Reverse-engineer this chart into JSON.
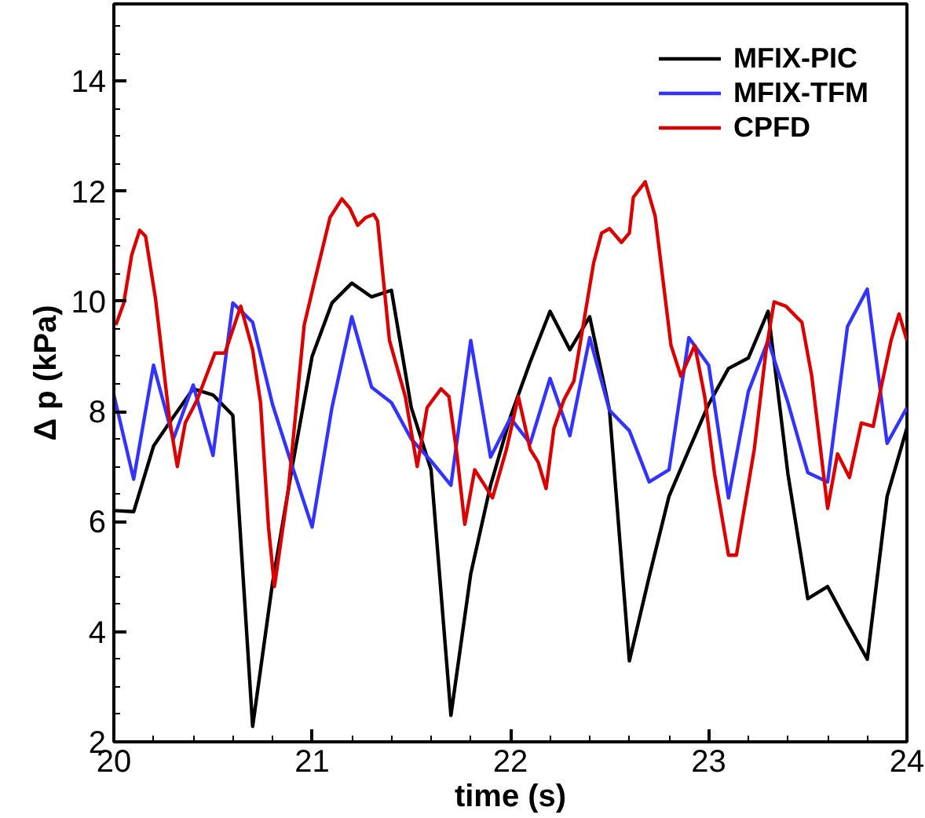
{
  "chart_data": {
    "type": "line",
    "xlabel": "time (s)",
    "ylabel": "Δ p (kPa)",
    "xlim": [
      20,
      24
    ],
    "ylim": [
      2,
      15.4
    ],
    "xticks": [
      20,
      21,
      22,
      23,
      24
    ],
    "yticks": [
      2,
      4,
      6,
      8,
      10,
      12,
      14
    ],
    "grid": false,
    "legend": "top right",
    "marker": "none",
    "line_style": "solid",
    "x": [
      20.0,
      20.1,
      20.2,
      20.3,
      20.4,
      20.5,
      20.6,
      20.7,
      20.8,
      20.9,
      21.0,
      21.1,
      21.2,
      21.3,
      21.4,
      21.5,
      21.6,
      21.7,
      21.8,
      21.9,
      22.0,
      22.1,
      22.2,
      22.3,
      22.4,
      22.5,
      22.6,
      22.7,
      22.8,
      22.9,
      23.0,
      23.1,
      23.2,
      23.3,
      23.4,
      23.5,
      23.6,
      23.7,
      23.8,
      23.9,
      24.0
    ],
    "series": [
      {
        "name": "MFIX-PIC",
        "color": "#000000",
        "values": [
          6.2,
          6.18,
          7.37,
          7.9,
          8.41,
          8.3,
          7.93,
          2.28,
          4.88,
          7.0,
          9.0,
          9.97,
          10.33,
          10.08,
          10.2,
          8.07,
          6.94,
          2.48,
          5.05,
          6.66,
          7.9,
          8.9,
          9.82,
          9.12,
          9.72,
          8.02,
          3.47,
          5.0,
          6.46,
          7.3,
          8.13,
          8.78,
          8.97,
          9.82,
          6.86,
          4.6,
          4.82,
          4.15,
          3.5,
          6.46,
          7.7
        ]
      },
      {
        "name": "MFIX-TFM",
        "color": "#3333ff",
        "values": [
          8.3,
          6.77,
          8.84,
          7.5,
          8.48,
          7.2,
          9.97,
          9.62,
          8.13,
          7.0,
          5.9,
          8.07,
          9.72,
          8.44,
          8.16,
          7.5,
          7.1,
          6.66,
          9.29,
          7.17,
          7.88,
          7.42,
          8.6,
          7.56,
          9.34,
          8.02,
          7.65,
          6.72,
          6.94,
          9.34,
          8.84,
          6.43,
          8.36,
          9.29,
          8.16,
          6.89,
          6.72,
          9.54,
          10.22,
          7.42,
          8.07
        ]
      },
      {
        "name": "CPFD",
        "color": "#dd0000",
        "x": [
          20.01,
          20.05,
          20.09,
          20.13,
          20.16,
          20.21,
          20.28,
          20.32,
          20.36,
          20.42,
          20.51,
          20.56,
          20.64,
          20.7,
          20.74,
          20.78,
          20.81,
          20.88,
          20.96,
          21.01,
          21.09,
          21.15,
          21.19,
          21.23,
          21.27,
          21.31,
          21.33,
          21.39,
          21.47,
          21.53,
          21.58,
          21.65,
          21.69,
          21.73,
          21.77,
          21.82,
          21.87,
          21.91,
          21.98,
          22.04,
          22.1,
          22.14,
          22.18,
          22.22,
          22.27,
          22.32,
          22.42,
          22.46,
          22.5,
          22.56,
          22.6,
          22.62,
          22.68,
          22.73,
          22.81,
          22.86,
          22.93,
          22.98,
          23.03,
          23.1,
          23.14,
          23.23,
          23.29,
          23.33,
          23.39,
          23.47,
          23.52,
          23.6,
          23.65,
          23.71,
          23.77,
          23.83,
          23.87,
          23.92,
          23.96,
          24.0
        ],
        "values": [
          9.57,
          9.97,
          10.84,
          11.29,
          11.18,
          10.05,
          7.88,
          7.0,
          7.79,
          8.21,
          9.06,
          9.06,
          9.91,
          9.12,
          8.16,
          5.9,
          4.82,
          6.58,
          9.57,
          10.33,
          11.52,
          11.86,
          11.69,
          11.38,
          11.52,
          11.58,
          11.46,
          9.29,
          8.27,
          7.0,
          8.07,
          8.41,
          8.27,
          7.23,
          5.95,
          6.94,
          6.66,
          6.43,
          7.31,
          8.27,
          7.31,
          7.08,
          6.6,
          7.7,
          8.21,
          8.55,
          10.7,
          11.24,
          11.32,
          11.07,
          11.24,
          11.89,
          12.17,
          11.55,
          9.2,
          8.64,
          9.2,
          8.27,
          6.86,
          5.39,
          5.39,
          7.31,
          9.12,
          9.99,
          9.91,
          9.62,
          8.64,
          6.24,
          7.23,
          6.8,
          7.79,
          7.73,
          8.44,
          9.29,
          9.77,
          9.29
        ]
      }
    ]
  }
}
